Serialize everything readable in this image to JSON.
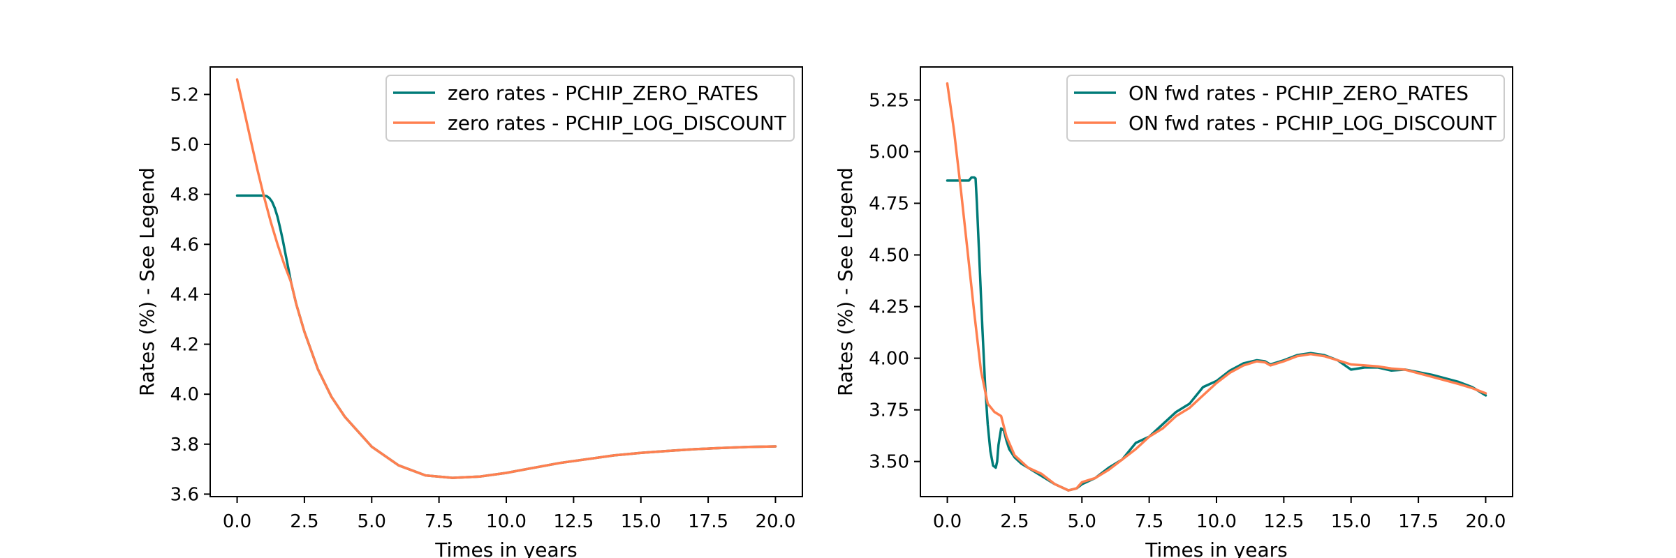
{
  "chart_data": [
    {
      "type": "line",
      "title": "",
      "xlabel": "Times in years",
      "ylabel": "Rates (%) - See Legend",
      "xlim": [
        -1.0,
        21.0
      ],
      "ylim": [
        3.59,
        5.31
      ],
      "xticks": [
        "0.0",
        "2.5",
        "5.0",
        "7.5",
        "10.0",
        "12.5",
        "15.0",
        "17.5",
        "20.0"
      ],
      "xtick_values": [
        0,
        2.5,
        5,
        7.5,
        10,
        12.5,
        15,
        17.5,
        20
      ],
      "yticks": [
        "3.6",
        "3.8",
        "4.0",
        "4.2",
        "4.4",
        "4.6",
        "4.8",
        "5.0",
        "5.2"
      ],
      "ytick_values": [
        3.6,
        3.8,
        4.0,
        4.2,
        4.4,
        4.6,
        4.8,
        5.0,
        5.2
      ],
      "legend_position": "top-right",
      "grid": false,
      "series": [
        {
          "name": "zero rates - PCHIP_ZERO_RATES",
          "color": "#007b78",
          "x": [
            0,
            0.5,
            1.0,
            1.1,
            1.2,
            1.3,
            1.4,
            1.5,
            1.6,
            1.7,
            1.8,
            1.9,
            2.0,
            2.2,
            2.5,
            3.0,
            3.5,
            4.0,
            5.0,
            6.0,
            7.0,
            8.0,
            9.0,
            10.0,
            11.0,
            12.0,
            13.0,
            14.0,
            15.0,
            16.0,
            17.0,
            18.0,
            19.0,
            20.0
          ],
          "y": [
            4.795,
            4.795,
            4.795,
            4.793,
            4.785,
            4.77,
            4.745,
            4.71,
            4.665,
            4.615,
            4.56,
            4.505,
            4.45,
            4.36,
            4.25,
            4.1,
            3.99,
            3.91,
            3.79,
            3.715,
            3.675,
            3.665,
            3.67,
            3.685,
            3.705,
            3.725,
            3.74,
            3.755,
            3.765,
            3.773,
            3.78,
            3.785,
            3.789,
            3.791
          ]
        },
        {
          "name": "zero rates - PCHIP_LOG_DISCOUNT",
          "color": "#ff7f4f",
          "x": [
            0,
            0.25,
            0.5,
            0.75,
            1.0,
            1.25,
            1.5,
            1.75,
            2.0,
            2.2,
            2.5,
            3.0,
            3.5,
            4.0,
            5.0,
            6.0,
            7.0,
            8.0,
            9.0,
            10.0,
            11.0,
            12.0,
            13.0,
            14.0,
            15.0,
            16.0,
            17.0,
            18.0,
            19.0,
            20.0
          ],
          "y": [
            5.26,
            5.14,
            5.02,
            4.9,
            4.79,
            4.69,
            4.6,
            4.52,
            4.45,
            4.36,
            4.25,
            4.1,
            3.99,
            3.91,
            3.79,
            3.715,
            3.675,
            3.665,
            3.67,
            3.685,
            3.705,
            3.725,
            3.74,
            3.755,
            3.765,
            3.773,
            3.78,
            3.785,
            3.789,
            3.791
          ]
        }
      ]
    },
    {
      "type": "line",
      "title": "",
      "xlabel": "Times in years",
      "ylabel": "Rates (%) - See Legend",
      "xlim": [
        -1.0,
        21.0
      ],
      "ylim": [
        3.33,
        5.41
      ],
      "xticks": [
        "0.0",
        "2.5",
        "5.0",
        "7.5",
        "10.0",
        "12.5",
        "15.0",
        "17.5",
        "20.0"
      ],
      "xtick_values": [
        0,
        2.5,
        5,
        7.5,
        10,
        12.5,
        15,
        17.5,
        20
      ],
      "yticks": [
        "3.50",
        "3.75",
        "4.00",
        "4.25",
        "4.50",
        "4.75",
        "5.00",
        "5.25"
      ],
      "ytick_values": [
        3.5,
        3.75,
        4.0,
        4.25,
        4.5,
        4.75,
        5.0,
        5.25
      ],
      "legend_position": "top-right",
      "grid": false,
      "series": [
        {
          "name": "ON fwd rates - PCHIP_ZERO_RATES",
          "color": "#007b78",
          "x": [
            0,
            0.5,
            0.8,
            0.9,
            1.0,
            1.05,
            1.1,
            1.2,
            1.3,
            1.4,
            1.5,
            1.6,
            1.7,
            1.8,
            1.85,
            1.9,
            2.0,
            2.1,
            2.2,
            2.3,
            2.5,
            2.75,
            3.0,
            3.5,
            4.0,
            4.5,
            4.8,
            5.0,
            5.5,
            6.0,
            6.5,
            7.0,
            7.5,
            8.0,
            8.5,
            9.0,
            9.5,
            10.0,
            10.5,
            11.0,
            11.5,
            11.8,
            12.0,
            12.5,
            13.0,
            13.5,
            14.0,
            14.5,
            15.0,
            15.5,
            16.0,
            16.5,
            17.0,
            18.0,
            19.0,
            19.5,
            20.0
          ],
          "y": [
            4.86,
            4.86,
            4.86,
            4.875,
            4.875,
            4.87,
            4.75,
            4.45,
            4.15,
            3.88,
            3.68,
            3.55,
            3.48,
            3.47,
            3.5,
            3.58,
            3.66,
            3.65,
            3.6,
            3.56,
            3.52,
            3.49,
            3.47,
            3.43,
            3.39,
            3.36,
            3.37,
            3.39,
            3.42,
            3.47,
            3.51,
            3.59,
            3.62,
            3.68,
            3.74,
            3.78,
            3.86,
            3.89,
            3.94,
            3.975,
            3.99,
            3.985,
            3.97,
            3.99,
            4.015,
            4.025,
            4.015,
            3.99,
            3.945,
            3.955,
            3.955,
            3.94,
            3.945,
            3.92,
            3.885,
            3.86,
            3.82
          ]
        },
        {
          "name": "ON fwd rates - PCHIP_LOG_DISCOUNT",
          "color": "#ff7f4f",
          "x": [
            0,
            0.25,
            0.5,
            0.75,
            1.0,
            1.25,
            1.5,
            1.75,
            2.0,
            2.2,
            2.5,
            3.0,
            3.5,
            4.0,
            4.5,
            4.8,
            5.0,
            5.5,
            6.0,
            6.5,
            7.0,
            7.5,
            8.0,
            8.5,
            9.0,
            9.5,
            10.0,
            10.5,
            11.0,
            11.5,
            11.8,
            12.0,
            12.5,
            13.0,
            13.5,
            14.0,
            14.5,
            15.0,
            15.5,
            16.0,
            16.5,
            17.0,
            18.0,
            19.0,
            19.5,
            20.0
          ],
          "y": [
            5.33,
            5.1,
            4.82,
            4.52,
            4.22,
            3.94,
            3.78,
            3.74,
            3.72,
            3.62,
            3.53,
            3.47,
            3.44,
            3.39,
            3.36,
            3.37,
            3.4,
            3.42,
            3.46,
            3.51,
            3.56,
            3.62,
            3.66,
            3.72,
            3.76,
            3.82,
            3.88,
            3.93,
            3.965,
            3.985,
            3.98,
            3.965,
            3.985,
            4.01,
            4.02,
            4.01,
            3.99,
            3.97,
            3.965,
            3.96,
            3.95,
            3.945,
            3.91,
            3.875,
            3.855,
            3.83
          ]
        }
      ]
    }
  ]
}
